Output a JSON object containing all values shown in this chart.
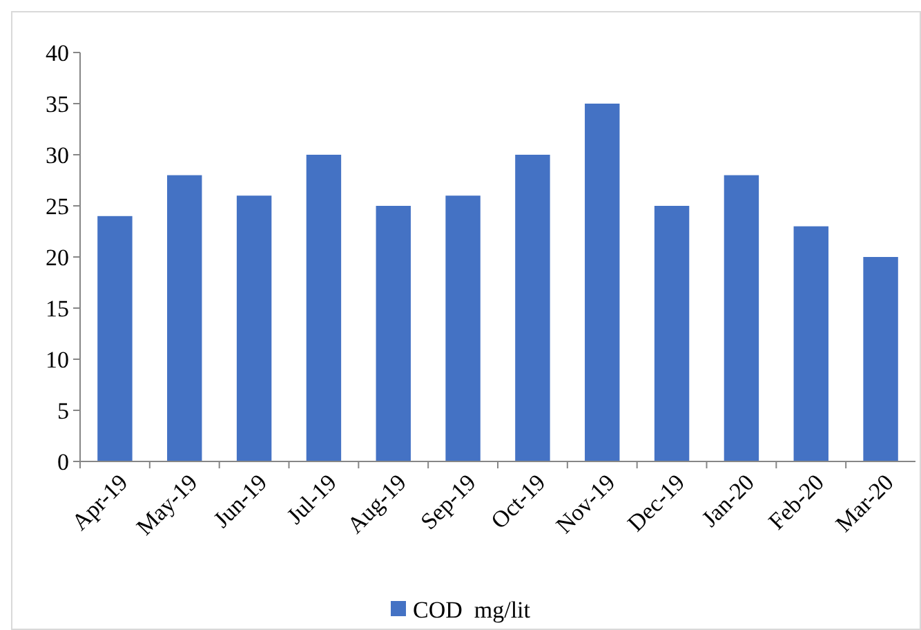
{
  "chart_data": {
    "type": "bar",
    "categories": [
      "Apr-19",
      "May-19",
      "Jun-19",
      "Jul-19",
      "Aug-19",
      "Sep-19",
      "Oct-19",
      "Nov-19",
      "Dec-19",
      "Jan-20",
      "Feb-20",
      "Mar-20"
    ],
    "series": [
      {
        "name": "COD  mg/lit",
        "color": "#4472c4",
        "values": [
          24,
          28,
          26,
          30,
          25,
          26,
          30,
          35,
          25,
          28,
          23,
          20
        ]
      }
    ],
    "ylim": [
      0,
      40
    ],
    "yticks": [
      0,
      5,
      10,
      15,
      20,
      25,
      30,
      35,
      40
    ],
    "grid": false,
    "legend": "bottom"
  }
}
